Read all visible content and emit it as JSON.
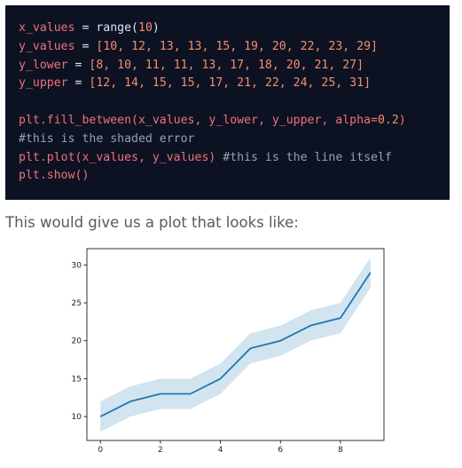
{
  "code": {
    "line1": {
      "var": "x_values",
      "op": " = ",
      "call": "range(",
      "arg": "10",
      "close": ")"
    },
    "line2": {
      "var": "y_values",
      "op": " = ",
      "open": "[",
      "nums": "10, 12, 13, 13, 15, 19, 20, 22, 23, 29",
      "close": "]"
    },
    "line3": {
      "var": "y_lower",
      "op": " = ",
      "open": "[",
      "nums": "8, 10, 11, 11, 13, 17, 18, 20, 21, 27",
      "close": "]"
    },
    "line4": {
      "var": "y_upper",
      "op": " = ",
      "open": "[",
      "nums": "12, 14, 15, 15, 17, 21, 22, 24, 25, 31",
      "close": "]"
    },
    "line5": {
      "fn": "plt.fill_between(",
      "args": "x_values, y_lower, y_upper, alpha=",
      "num": "0.2",
      "close": ")"
    },
    "line6": {
      "comment": "#this is the shaded error"
    },
    "line7": {
      "fn": "plt.plot(",
      "args": "x_values, y_values",
      "close": ")",
      "comment": " #this is the line itself"
    },
    "line8": {
      "fn": "plt.show",
      "close": "()"
    }
  },
  "intro": "This would give us a plot that looks like:",
  "colors": {
    "line": "#1f77b4",
    "fill": "#1f77b4",
    "code_bg": "#0d1223"
  },
  "chart_data": {
    "type": "line",
    "x": [
      0,
      1,
      2,
      3,
      4,
      5,
      6,
      7,
      8,
      9
    ],
    "series": [
      {
        "values": [
          10,
          12,
          13,
          13,
          15,
          19,
          20,
          22,
          23,
          29
        ]
      }
    ],
    "band": {
      "lower": [
        8,
        10,
        11,
        11,
        13,
        17,
        18,
        20,
        21,
        27
      ],
      "upper": [
        12,
        14,
        15,
        15,
        17,
        21,
        22,
        24,
        25,
        31
      ],
      "alpha": 0.2
    },
    "xlim": [
      -0.45,
      9.45
    ],
    "ylim": [
      6.85,
      32.15
    ],
    "xticks": [
      0,
      2,
      4,
      6,
      8
    ],
    "yticks": [
      10,
      15,
      20,
      25,
      30
    ],
    "title": "",
    "xlabel": "",
    "ylabel": "",
    "grid": false
  }
}
